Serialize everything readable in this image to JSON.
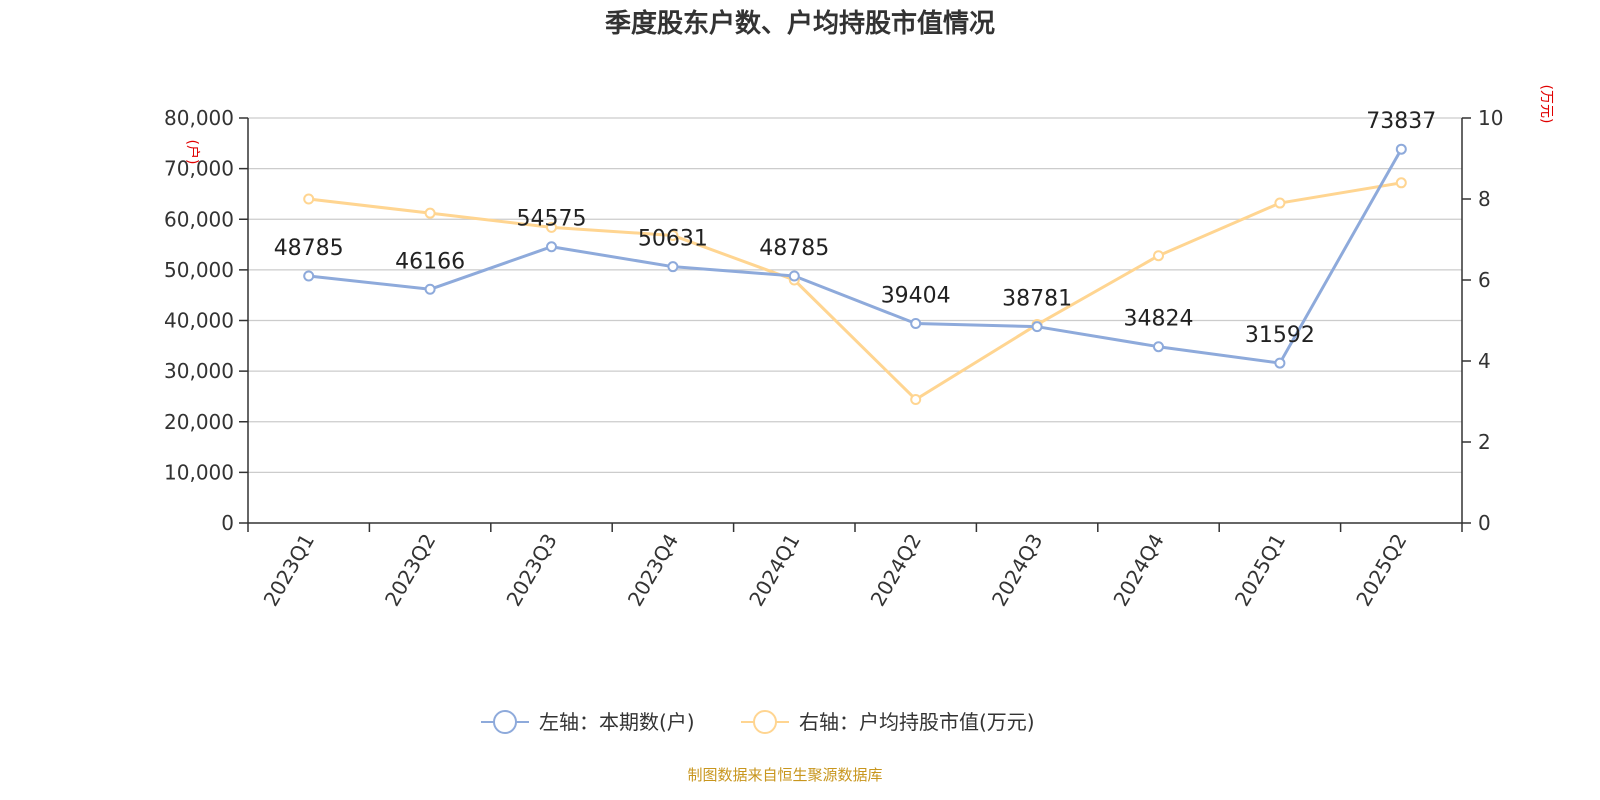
{
  "chart_data": {
    "type": "line",
    "title": "季度股东户数、户均持股市值情况",
    "categories": [
      "2023Q1",
      "2023Q2",
      "2023Q3",
      "2023Q4",
      "2024Q1",
      "2024Q2",
      "2024Q3",
      "2024Q4",
      "2025Q1",
      "2025Q2"
    ],
    "series": [
      {
        "name": "左轴：本期数(户)",
        "axis": "left",
        "color": "#8eaadb",
        "values": [
          48785,
          46166,
          54575,
          50631,
          48785,
          39404,
          38781,
          34824,
          31592,
          73837
        ],
        "data_labels": [
          "48785",
          "46166",
          "54575",
          "50631",
          "48785",
          "39404",
          "38781",
          "34824",
          "31592",
          "73837"
        ]
      },
      {
        "name": "右轴：户均持股市值(万元)",
        "axis": "right",
        "color": "#ffd591",
        "values": [
          8.0,
          7.65,
          7.3,
          7.1,
          6.0,
          3.05,
          4.9,
          6.6,
          7.9,
          8.4
        ]
      }
    ],
    "y_left": {
      "unit_label": "(户)",
      "ylim": [
        0,
        80000
      ],
      "ticks": [
        0,
        10000,
        20000,
        30000,
        40000,
        50000,
        60000,
        70000,
        80000
      ],
      "tick_labels": [
        "0",
        "10,000",
        "20,000",
        "30,000",
        "40,000",
        "50,000",
        "60,000",
        "70,000",
        "80,000"
      ]
    },
    "y_right": {
      "unit_label": "(万元)",
      "ylim": [
        0,
        10
      ],
      "ticks": [
        0,
        2,
        4,
        6,
        8,
        10
      ],
      "tick_labels": [
        "0",
        "2",
        "4",
        "6",
        "8",
        "10"
      ]
    },
    "grid": true,
    "legend_position": "bottom-center"
  },
  "source": "制图数据来自恒生聚源数据库"
}
